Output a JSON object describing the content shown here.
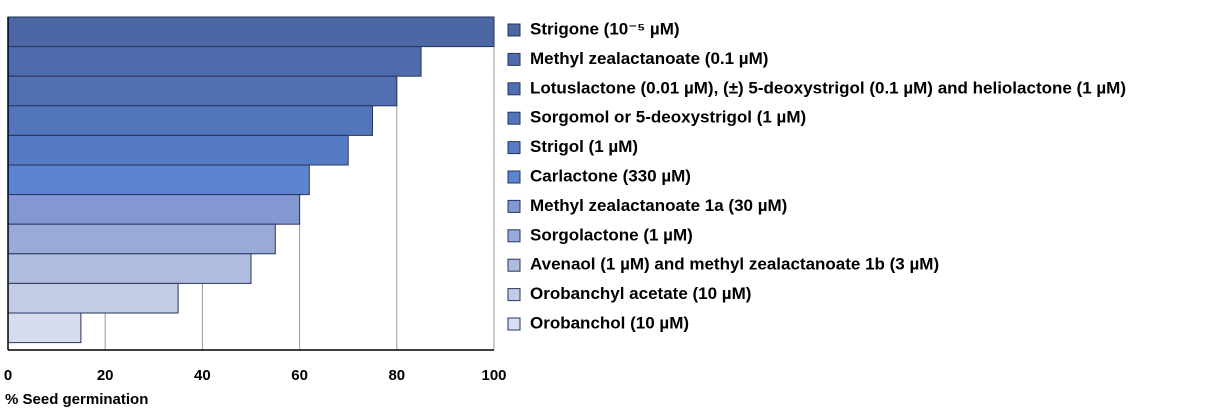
{
  "chart_data": {
    "type": "bar",
    "orientation": "horizontal",
    "x_label": "% Seed germination",
    "categories": [
      "Strigone (10⁻⁵ µM)",
      "Methyl zealactanoate (0.1 µM)",
      "Lotuslactone (0.01 µM), (±) 5-deoxystrigol (0.1 µM) and heliolactone (1 µM)",
      "Sorgomol or 5-deoxystrigol (1 µM)",
      "Strigol (1 µM)",
      "Carlactone (330 µM)",
      "Methyl zealactanoate 1a (30 µM)",
      "Sorgolactone (1 µM)",
      "Avenaol (1 µM) and methyl zealactanoate 1b (3 µM)",
      "Orobanchyl acetate (10 µM)",
      "Orobanchol  (10 µM)"
    ],
    "values": [
      100,
      85,
      80,
      75,
      70,
      62,
      60,
      55,
      50,
      35,
      15
    ],
    "colors": [
      "#4c67a3",
      "#4e6cad",
      "#5170b4",
      "#5375bc",
      "#567bc4",
      "#5b85d0",
      "#8398d2",
      "#9aaad8",
      "#afbcdf",
      "#c3cce7",
      "#d7dcef"
    ],
    "xlim": [
      0,
      100
    ],
    "xticks": [
      0,
      20,
      40,
      60,
      80,
      100
    ],
    "grid": true,
    "legend": "right"
  }
}
